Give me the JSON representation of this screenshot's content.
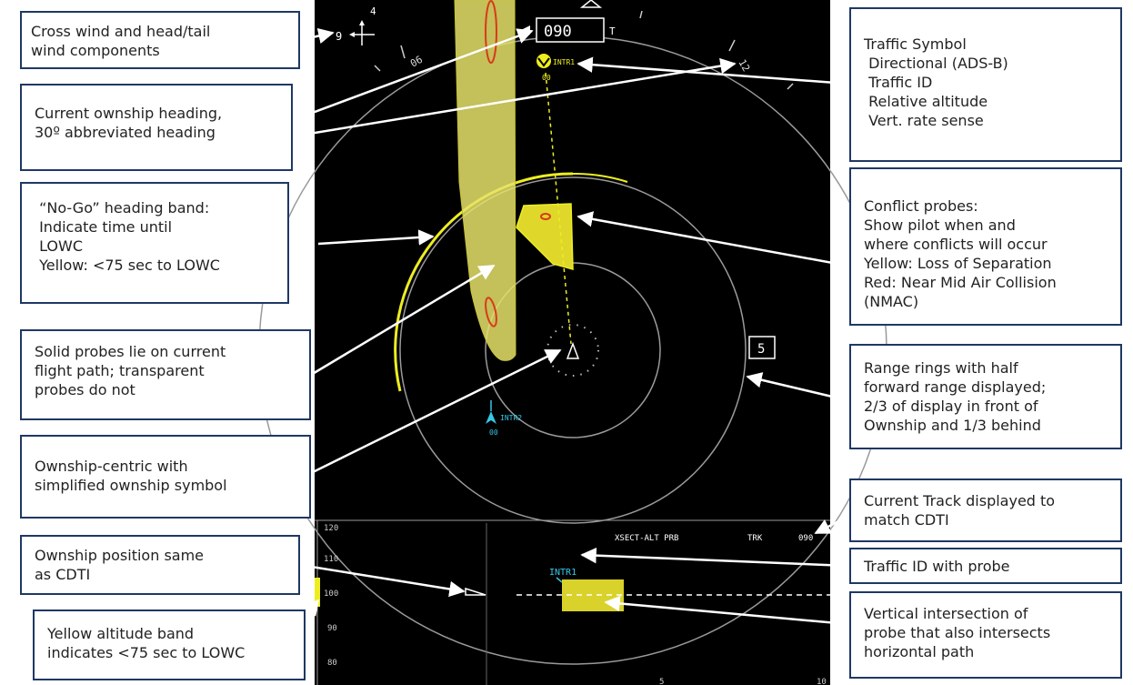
{
  "callouts": {
    "crosswind": {
      "lines": [
        "Cross wind and head/tail",
        "wind components"
      ]
    },
    "heading": {
      "lines": [
        "Current ownship heading,",
        "30º abbreviated heading"
      ]
    },
    "nogo": {
      "lines": [
        " “No-Go” heading band:",
        " Indicate time until",
        " LOWC",
        " Yellow: <75 sec to LOWC"
      ]
    },
    "solid_probes": {
      "lines": [
        "Solid probes lie on current",
        "flight path; transparent",
        "probes do not"
      ]
    },
    "ownship_centric": {
      "lines": [
        "Ownship-centric with",
        "simplified ownship symbol"
      ]
    },
    "ownship_position": {
      "lines": [
        "Ownship position same",
        "as CDTI"
      ]
    },
    "alt_band": {
      "lines": [
        "Yellow altitude band",
        "indicates <75 sec to LOWC"
      ]
    },
    "traffic_symbol": {
      "lines": [
        "Traffic Symbol",
        " Directional (ADS-B)",
        " Traffic ID",
        " Relative altitude",
        " Vert. rate sense"
      ]
    },
    "conflict_probes": {
      "lines": [
        "Conflict probes:",
        "Show pilot when and",
        "where conflicts will occur",
        "Yellow: Loss of Separation",
        "Red: Near Mid Air Collision",
        "(NMAC)"
      ]
    },
    "range_rings": {
      "lines": [
        "Range rings with half",
        "forward range displayed;",
        "2/3 of display in front of",
        "Ownship and 1/3 behind"
      ]
    },
    "current_track": {
      "lines": [
        "Current Track displayed to",
        "match CDTI"
      ]
    },
    "traffic_id_probe": {
      "lines": [
        "Traffic ID with probe"
      ]
    },
    "vertical_intersection": {
      "lines": [
        "Vertical intersection of",
        "probe that also intersects",
        "horizontal path"
      ]
    }
  },
  "display": {
    "heading_value": "090",
    "heading_ref": "T",
    "wind_value": "9",
    "wind_tail": "4",
    "range_label": "5",
    "traffic1_id": "INTR1",
    "traffic1_alt": "00",
    "traffic2_id": "INTR2",
    "traffic2_alt": "00",
    "compass_ticks": [
      "06",
      "12"
    ],
    "vsd_title": "XSECT-ALT PRB",
    "vsd_track_label": "TRK",
    "vsd_track_value": "090",
    "vsd_traffic_id": "INTR1",
    "vsd_alt_ticks": [
      "120",
      "110",
      "100",
      "90",
      "80"
    ],
    "vsd_range_ticks": [
      "5",
      "10"
    ]
  },
  "colors": {
    "screen_bg": "#000000",
    "nogo_band": "#e6e26a",
    "alert_yellow": "#eded21",
    "nmac_red": "#d83a1a",
    "traffic_cyan": "#36c8e8",
    "ring_gray": "#9a9a9a",
    "callout_border": "#1f3864"
  }
}
